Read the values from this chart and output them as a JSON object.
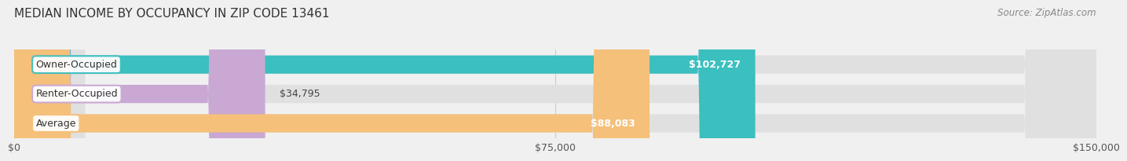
{
  "title": "MEDIAN INCOME BY OCCUPANCY IN ZIP CODE 13461",
  "source": "Source: ZipAtlas.com",
  "categories": [
    "Owner-Occupied",
    "Renter-Occupied",
    "Average"
  ],
  "values": [
    102727,
    34795,
    88083
  ],
  "labels": [
    "$102,727",
    "$34,795",
    "$88,083"
  ],
  "bar_colors": [
    "#3bbfbf",
    "#c9a8d4",
    "#f5c07a"
  ],
  "xlim": [
    0,
    150000
  ],
  "xtick_values": [
    0,
    75000,
    150000
  ],
  "xtick_labels": [
    "$0",
    "$75,000",
    "$150,000"
  ],
  "background_color": "#f0f0f0",
  "bar_bg_color": "#e0e0e0",
  "label_fontsize": 9,
  "title_fontsize": 11,
  "source_fontsize": 8.5
}
